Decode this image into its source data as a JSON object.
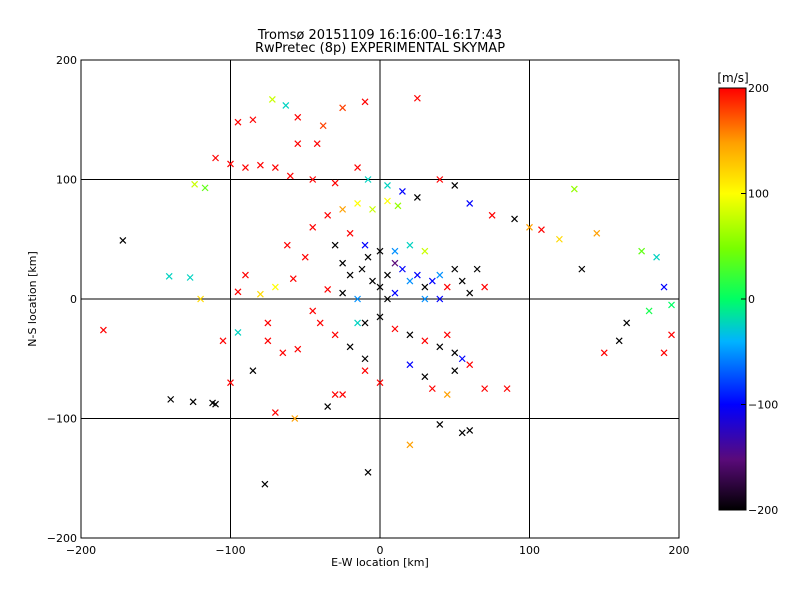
{
  "title_line1": "Tromsø 20151109 16:16:00–16:17:43",
  "title_line2": "RwPretec (8p) EXPERIMENTAL SKYMAP",
  "chart_data": {
    "type": "scatter",
    "title": "Tromsø 20151109 16:16:00–16:17:43",
    "subtitle": "RwPretec (8p) EXPERIMENTAL SKYMAP",
    "xlabel": "E-W location [km]",
    "ylabel": "N-S location [km]",
    "xlim": [
      -200,
      200
    ],
    "ylim": [
      -200,
      200
    ],
    "xticks": [
      -200,
      -100,
      0,
      100,
      200
    ],
    "yticks": [
      -200,
      -100,
      0,
      100,
      200
    ],
    "xtick_labels": [
      "−200",
      "−100",
      "0",
      "100",
      "200"
    ],
    "ytick_labels": [
      "−200",
      "−100",
      "0",
      "100",
      "200"
    ],
    "grid": true,
    "markers": [
      "x",
      "dot"
    ],
    "colorbar": {
      "label": "[m/s]",
      "range": [
        -200,
        200
      ],
      "ticks": [
        200,
        100,
        0,
        -100,
        -200
      ],
      "tick_labels": [
        "200",
        "100",
        "0",
        "−100",
        "−200"
      ],
      "colormap": [
        "#000000",
        "#5a0a7a",
        "#0000ff",
        "#00b4ff",
        "#00ff64",
        "#78ff00",
        "#ffff00",
        "#ffa000",
        "#ff0000"
      ]
    },
    "points": [
      {
        "x": -172,
        "y": 49,
        "v": -200,
        "m": "x"
      },
      {
        "x": -185,
        "y": -26,
        "v": 200,
        "m": "x"
      },
      {
        "x": -140,
        "y": -84,
        "v": -200,
        "m": "x"
      },
      {
        "x": -125,
        "y": -86,
        "v": -200,
        "m": "x"
      },
      {
        "x": -112,
        "y": -87,
        "v": -200,
        "m": "x"
      },
      {
        "x": -77,
        "y": -155,
        "v": -200,
        "m": "x"
      },
      {
        "x": -141,
        "y": 19,
        "v": -30,
        "m": "x"
      },
      {
        "x": -127,
        "y": 18,
        "v": -30,
        "m": "x"
      },
      {
        "x": -124,
        "y": 96,
        "v": 80,
        "m": "x"
      },
      {
        "x": -117,
        "y": 93,
        "v": 40,
        "m": "x"
      },
      {
        "x": -95,
        "y": 148,
        "v": 200,
        "m": "x"
      },
      {
        "x": -85,
        "y": 150,
        "v": 200,
        "m": "x"
      },
      {
        "x": -72,
        "y": 167,
        "v": 80,
        "m": "x"
      },
      {
        "x": -63,
        "y": 162,
        "v": -30,
        "m": "x"
      },
      {
        "x": -55,
        "y": 152,
        "v": 200,
        "m": "x"
      },
      {
        "x": -38,
        "y": 145,
        "v": 180,
        "m": "x"
      },
      {
        "x": -25,
        "y": 160,
        "v": 180,
        "m": "x"
      },
      {
        "x": -10,
        "y": 165,
        "v": 200,
        "m": "x"
      },
      {
        "x": 25,
        "y": 168,
        "v": 200,
        "m": "x"
      },
      {
        "x": -110,
        "y": 118,
        "v": 200,
        "m": "x"
      },
      {
        "x": -100,
        "y": 113,
        "v": 200,
        "m": "x"
      },
      {
        "x": -90,
        "y": 110,
        "v": 200,
        "m": "x"
      },
      {
        "x": -80,
        "y": 112,
        "v": 200,
        "m": "x"
      },
      {
        "x": -70,
        "y": 110,
        "v": 200,
        "m": "x"
      },
      {
        "x": -60,
        "y": 103,
        "v": 200,
        "m": "x"
      },
      {
        "x": -45,
        "y": 100,
        "v": 200,
        "m": "x"
      },
      {
        "x": -30,
        "y": 97,
        "v": 200,
        "m": "x"
      },
      {
        "x": -55,
        "y": 130,
        "v": 200,
        "m": "x"
      },
      {
        "x": -42,
        "y": 130,
        "v": 200,
        "m": "x"
      },
      {
        "x": -15,
        "y": 110,
        "v": 200,
        "m": "x"
      },
      {
        "x": -90,
        "y": 20,
        "v": 200,
        "m": "x"
      },
      {
        "x": -95,
        "y": 6,
        "v": 200,
        "m": "x"
      },
      {
        "x": -80,
        "y": 4,
        "v": 120,
        "m": "x"
      },
      {
        "x": -70,
        "y": 10,
        "v": 100,
        "m": "x"
      },
      {
        "x": -58,
        "y": 17,
        "v": 200,
        "m": "x"
      },
      {
        "x": -75,
        "y": -20,
        "v": 200,
        "m": "x"
      },
      {
        "x": -95,
        "y": -28,
        "v": -30,
        "m": "x"
      },
      {
        "x": -75,
        "y": -35,
        "v": 200,
        "m": "x"
      },
      {
        "x": -65,
        "y": -45,
        "v": 200,
        "m": "x"
      },
      {
        "x": -55,
        "y": -42,
        "v": 200,
        "m": "x"
      },
      {
        "x": -85,
        "y": -60,
        "v": -200,
        "m": "x"
      },
      {
        "x": -100,
        "y": -70,
        "v": 200,
        "m": "x"
      },
      {
        "x": -70,
        "y": -95,
        "v": 200,
        "m": "x"
      },
      {
        "x": -57,
        "y": -100,
        "v": 150,
        "m": "x"
      },
      {
        "x": -30,
        "y": -80,
        "v": 200,
        "m": "x"
      },
      {
        "x": -35,
        "y": -90,
        "v": -200,
        "m": "x"
      },
      {
        "x": -25,
        "y": -80,
        "v": 200,
        "m": "x"
      },
      {
        "x": -10,
        "y": -60,
        "v": 200,
        "m": "x"
      },
      {
        "x": 0,
        "y": -70,
        "v": 200,
        "m": "x"
      },
      {
        "x": -20,
        "y": -40,
        "v": -200,
        "m": "x"
      },
      {
        "x": -10,
        "y": -50,
        "v": -200,
        "m": "x"
      },
      {
        "x": -25,
        "y": 30,
        "v": -200,
        "m": "x"
      },
      {
        "x": -20,
        "y": 20,
        "v": -200,
        "m": "x"
      },
      {
        "x": -12,
        "y": 25,
        "v": -200,
        "m": "x"
      },
      {
        "x": -8,
        "y": 35,
        "v": -200,
        "m": "x"
      },
      {
        "x": -5,
        "y": 15,
        "v": -200,
        "m": "x"
      },
      {
        "x": 0,
        "y": 10,
        "v": -200,
        "m": "x"
      },
      {
        "x": 5,
        "y": 20,
        "v": -200,
        "m": "x"
      },
      {
        "x": 10,
        "y": 30,
        "v": -150,
        "m": "x"
      },
      {
        "x": 15,
        "y": 25,
        "v": -100,
        "m": "x"
      },
      {
        "x": 20,
        "y": 15,
        "v": -60,
        "m": "x"
      },
      {
        "x": 25,
        "y": 20,
        "v": -100,
        "m": "x"
      },
      {
        "x": 30,
        "y": 10,
        "v": -200,
        "m": "x"
      },
      {
        "x": 35,
        "y": 15,
        "v": -100,
        "m": "x"
      },
      {
        "x": 40,
        "y": 20,
        "v": -60,
        "m": "x"
      },
      {
        "x": 45,
        "y": 10,
        "v": 200,
        "m": "x"
      },
      {
        "x": 55,
        "y": 15,
        "v": -200,
        "m": "x"
      },
      {
        "x": 65,
        "y": 25,
        "v": -200,
        "m": "x"
      },
      {
        "x": 70,
        "y": 10,
        "v": 200,
        "m": "x"
      },
      {
        "x": 50,
        "y": 25,
        "v": -200,
        "m": "x"
      },
      {
        "x": -30,
        "y": 45,
        "v": -200,
        "m": "x"
      },
      {
        "x": -20,
        "y": 55,
        "v": 200,
        "m": "x"
      },
      {
        "x": -10,
        "y": 45,
        "v": -100,
        "m": "x"
      },
      {
        "x": 0,
        "y": 40,
        "v": -200,
        "m": "x"
      },
      {
        "x": 10,
        "y": 40,
        "v": -60,
        "m": "x"
      },
      {
        "x": 20,
        "y": 45,
        "v": -30,
        "m": "x"
      },
      {
        "x": 30,
        "y": 40,
        "v": 80,
        "m": "x"
      },
      {
        "x": -35,
        "y": 70,
        "v": 200,
        "m": "x"
      },
      {
        "x": -25,
        "y": 75,
        "v": 150,
        "m": "x"
      },
      {
        "x": -15,
        "y": 80,
        "v": 100,
        "m": "x"
      },
      {
        "x": -5,
        "y": 75,
        "v": 80,
        "m": "x"
      },
      {
        "x": 5,
        "y": 82,
        "v": 100,
        "m": "x"
      },
      {
        "x": 12,
        "y": 78,
        "v": 60,
        "m": "x"
      },
      {
        "x": -8,
        "y": 100,
        "v": -30,
        "m": "x"
      },
      {
        "x": 5,
        "y": 95,
        "v": -30,
        "m": "x"
      },
      {
        "x": 15,
        "y": 90,
        "v": -100,
        "m": "x"
      },
      {
        "x": 25,
        "y": 85,
        "v": -200,
        "m": "x"
      },
      {
        "x": 40,
        "y": 100,
        "v": 200,
        "m": "x"
      },
      {
        "x": 50,
        "y": 95,
        "v": -200,
        "m": "x"
      },
      {
        "x": 60,
        "y": 80,
        "v": -100,
        "m": "x"
      },
      {
        "x": 75,
        "y": 70,
        "v": 200,
        "m": "x"
      },
      {
        "x": 90,
        "y": 67,
        "v": -200,
        "m": "x"
      },
      {
        "x": 100,
        "y": 60,
        "v": 150,
        "m": "x"
      },
      {
        "x": 108,
        "y": 58,
        "v": 200,
        "m": "x"
      },
      {
        "x": 120,
        "y": 50,
        "v": 120,
        "m": "x"
      },
      {
        "x": 145,
        "y": 55,
        "v": 150,
        "m": "x"
      },
      {
        "x": 135,
        "y": 25,
        "v": -200,
        "m": "x"
      },
      {
        "x": 130,
        "y": 92,
        "v": 60,
        "m": "x"
      },
      {
        "x": 175,
        "y": 40,
        "v": 40,
        "m": "x"
      },
      {
        "x": 185,
        "y": 35,
        "v": -30,
        "m": "x"
      },
      {
        "x": 190,
        "y": 10,
        "v": -100,
        "m": "x"
      },
      {
        "x": 195,
        "y": -5,
        "v": 0,
        "m": "x"
      },
      {
        "x": 180,
        "y": -10,
        "v": 10,
        "m": "x"
      },
      {
        "x": 165,
        "y": -20,
        "v": -200,
        "m": "x"
      },
      {
        "x": 160,
        "y": -35,
        "v": -200,
        "m": "x"
      },
      {
        "x": 150,
        "y": -45,
        "v": 200,
        "m": "x"
      },
      {
        "x": 190,
        "y": -45,
        "v": 200,
        "m": "x"
      },
      {
        "x": 195,
        "y": -30,
        "v": 200,
        "m": "x"
      },
      {
        "x": -10,
        "y": -20,
        "v": -200,
        "m": "x"
      },
      {
        "x": 0,
        "y": -15,
        "v": -200,
        "m": "x"
      },
      {
        "x": 10,
        "y": -25,
        "v": 200,
        "m": "x"
      },
      {
        "x": 20,
        "y": -30,
        "v": -200,
        "m": "x"
      },
      {
        "x": 30,
        "y": -35,
        "v": 200,
        "m": "x"
      },
      {
        "x": 40,
        "y": -40,
        "v": -200,
        "m": "x"
      },
      {
        "x": 45,
        "y": -30,
        "v": 200,
        "m": "x"
      },
      {
        "x": 50,
        "y": -45,
        "v": -200,
        "m": "x"
      },
      {
        "x": 55,
        "y": -50,
        "v": -100,
        "m": "x"
      },
      {
        "x": 60,
        "y": -55,
        "v": 200,
        "m": "x"
      },
      {
        "x": 50,
        "y": -60,
        "v": -200,
        "m": "x"
      },
      {
        "x": 30,
        "y": -65,
        "v": -200,
        "m": "x"
      },
      {
        "x": 20,
        "y": -55,
        "v": -100,
        "m": "x"
      },
      {
        "x": 35,
        "y": -75,
        "v": 200,
        "m": "x"
      },
      {
        "x": 45,
        "y": -80,
        "v": 150,
        "m": "x"
      },
      {
        "x": 70,
        "y": -75,
        "v": 200,
        "m": "x"
      },
      {
        "x": 85,
        "y": -75,
        "v": 200,
        "m": "x"
      },
      {
        "x": 40,
        "y": -105,
        "v": -200,
        "m": "x"
      },
      {
        "x": 55,
        "y": -112,
        "v": -200,
        "m": "x"
      },
      {
        "x": 60,
        "y": -110,
        "v": -200,
        "m": "x"
      },
      {
        "x": 20,
        "y": -122,
        "v": 150,
        "m": "x"
      },
      {
        "x": -8,
        "y": -145,
        "v": -200,
        "m": "x"
      },
      {
        "x": -15,
        "y": -20,
        "v": -30,
        "m": "x"
      },
      {
        "x": -30,
        "y": -30,
        "v": 200,
        "m": "x"
      },
      {
        "x": -40,
        "y": -20,
        "v": 200,
        "m": "x"
      },
      {
        "x": -45,
        "y": -10,
        "v": 200,
        "m": "x"
      },
      {
        "x": -25,
        "y": 5,
        "v": -200,
        "m": "x"
      },
      {
        "x": -35,
        "y": 8,
        "v": 200,
        "m": "x"
      },
      {
        "x": -15,
        "y": 0,
        "v": -60,
        "m": "x"
      },
      {
        "x": 5,
        "y": 0,
        "v": -200,
        "m": "x"
      },
      {
        "x": 10,
        "y": 5,
        "v": -100,
        "m": "x"
      },
      {
        "x": 30,
        "y": 0,
        "v": -60,
        "m": "x"
      },
      {
        "x": 40,
        "y": 0,
        "v": -100,
        "m": "x"
      },
      {
        "x": 60,
        "y": 5,
        "v": -200,
        "m": "x"
      },
      {
        "x": -50,
        "y": 35,
        "v": 200,
        "m": "x"
      },
      {
        "x": -62,
        "y": 45,
        "v": 200,
        "m": "x"
      },
      {
        "x": -45,
        "y": 60,
        "v": 200,
        "m": "x"
      },
      {
        "x": -120,
        "y": 0,
        "v": 120,
        "m": "x"
      },
      {
        "x": -105,
        "y": -35,
        "v": 200,
        "m": "x"
      },
      {
        "x": -110,
        "y": -88,
        "v": -200,
        "m": "x"
      }
    ]
  }
}
